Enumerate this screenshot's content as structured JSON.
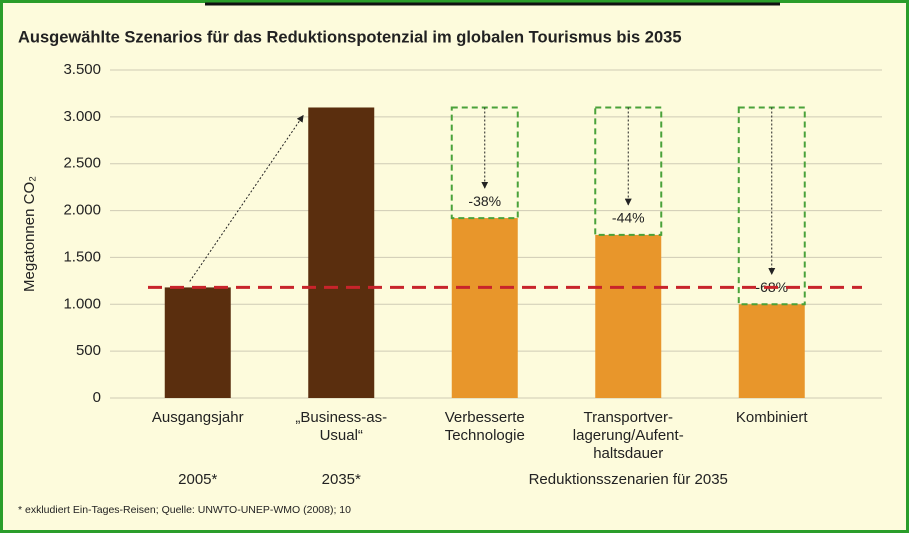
{
  "chart_data": {
    "type": "bar",
    "title": "Ausgewählte Szenarios für das Reduktionspotenzial im globalen Tourismus bis 2035",
    "ylabel": "Megatonnen CO₂",
    "categories": [
      "Ausgangsjahr",
      "„Business-as-\nUsual“",
      "Verbesserte\nTechnologie",
      "Transportver-\nlagerung/Aufent-\nhaltsdauer",
      "Kombiniert"
    ],
    "values": [
      1180,
      3100,
      1920,
      1740,
      1000
    ],
    "colors": [
      "#5a2e0e",
      "#5a2e0e",
      "#e8962b",
      "#e8962b",
      "#e8962b"
    ],
    "annotations": [
      null,
      null,
      "-38%",
      "-44%",
      "-68%"
    ],
    "groups": [
      "2005*",
      "2035*",
      "Reduktionsszenarien für 2035"
    ],
    "reference_line": 1180,
    "reference_color": "#c8242b",
    "box_color": "#4aa23a",
    "ylim": [
      0,
      3500
    ],
    "yticks": [
      0,
      500,
      {
        "value": 1000,
        "label": "1.000"
      },
      {
        "value": 1500,
        "label": "1.500"
      },
      {
        "value": 2000,
        "label": "2.000"
      },
      {
        "value": 2500,
        "label": "2.500"
      },
      {
        "value": 3000,
        "label": "3.000"
      },
      {
        "value": 3500,
        "label": "3.500"
      }
    ],
    "grid": true,
    "footnote": "* exkludiert Ein-Tages-Reisen; Quelle: UNWTO-UNEP-WMO (2008); 10"
  }
}
